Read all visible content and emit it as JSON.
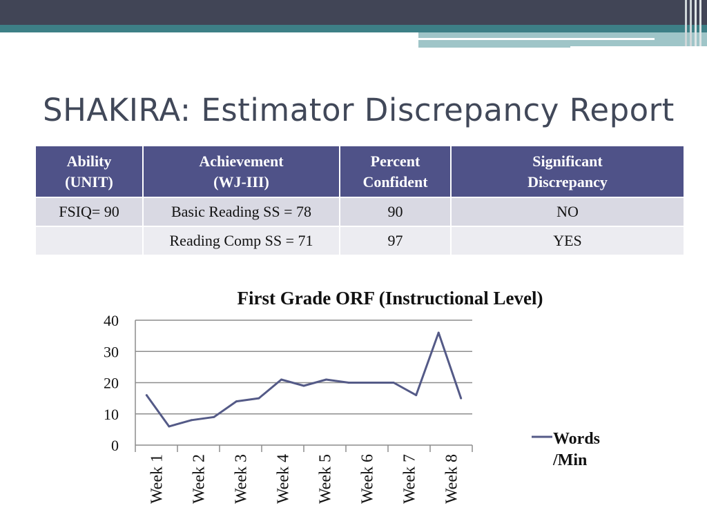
{
  "slide": {
    "title": "SHAKIRA: Estimator Discrepancy Report"
  },
  "table": {
    "headers": [
      [
        "Ability",
        "(UNIT)"
      ],
      [
        "Achievement",
        "(WJ-III)"
      ],
      [
        "Percent",
        "Confident"
      ],
      [
        "Significant",
        "Discrepancy"
      ]
    ],
    "rows": [
      [
        "FSIQ= 90",
        "Basic Reading SS = 78",
        "90",
        "NO"
      ],
      [
        "",
        "Reading Comp SS = 71",
        "97",
        "YES"
      ]
    ]
  },
  "colors": {
    "header_bg": "#4f5288",
    "line": "#545a87",
    "title": "#414859",
    "band_dark": "#414556",
    "band_teal": "#3d7f86"
  },
  "chart_data": {
    "type": "line",
    "title": "First Grade ORF (Instructional Level)",
    "xlabel": "",
    "ylabel": "",
    "ylim": [
      0,
      40
    ],
    "yticks": [
      0,
      10,
      20,
      30,
      40
    ],
    "grid": true,
    "legend_position": "right",
    "x_tick_labels": [
      "Week 1",
      "Week 2",
      "Week 3",
      "Week 4",
      "Week 5",
      "Week 6",
      "Week 7",
      "Week 8"
    ],
    "series": [
      {
        "name": "Words /Min",
        "values": [
          16,
          6,
          8,
          9,
          14,
          15,
          21,
          19,
          21,
          20,
          20,
          20,
          16,
          36,
          15
        ]
      }
    ]
  }
}
